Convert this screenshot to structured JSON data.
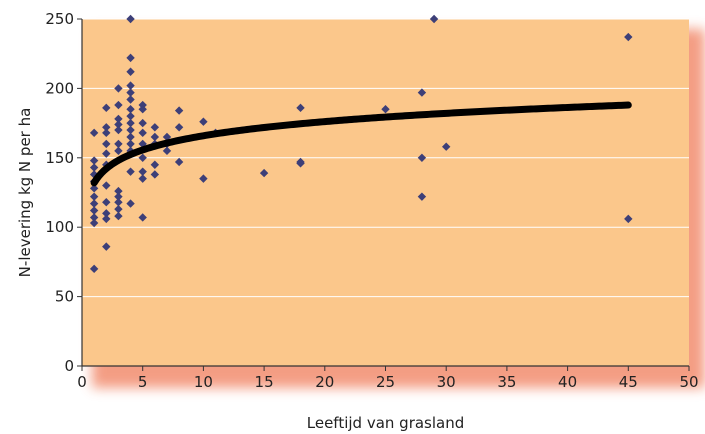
{
  "chart_data": {
    "type": "scatter",
    "title": "",
    "xlabel": "Leeftijd van grasland",
    "ylabel": "N-levering kg N per ha",
    "xlim": [
      0,
      50
    ],
    "ylim": [
      0,
      250
    ],
    "x_ticks": [
      0,
      5,
      10,
      15,
      20,
      25,
      30,
      35,
      40,
      45,
      50
    ],
    "y_ticks": [
      0,
      50,
      100,
      150,
      200,
      250
    ],
    "grid": "horizontal",
    "legend": "none",
    "colors": {
      "plot_background": "#FBC78B",
      "shadow": "#F28C6E",
      "gridline": "#FFFFFF",
      "point": "#3D3F78",
      "trend_line": "#000000"
    },
    "series": [
      {
        "kind": "points",
        "points": [
          [
            1,
            168
          ],
          [
            1,
            148
          ],
          [
            1,
            143
          ],
          [
            1,
            138
          ],
          [
            1,
            133
          ],
          [
            1,
            128
          ],
          [
            1,
            122
          ],
          [
            1,
            117
          ],
          [
            1,
            112
          ],
          [
            1,
            107
          ],
          [
            1,
            103
          ],
          [
            1,
            70
          ],
          [
            2,
            186
          ],
          [
            2,
            172
          ],
          [
            2,
            168
          ],
          [
            2,
            160
          ],
          [
            2,
            153
          ],
          [
            2,
            145
          ],
          [
            2,
            130
          ],
          [
            2,
            118
          ],
          [
            2,
            110
          ],
          [
            2,
            106
          ],
          [
            2,
            86
          ],
          [
            3,
            200
          ],
          [
            3,
            188
          ],
          [
            3,
            178
          ],
          [
            3,
            174
          ],
          [
            3,
            170
          ],
          [
            3,
            160
          ],
          [
            3,
            155
          ],
          [
            3,
            126
          ],
          [
            3,
            122
          ],
          [
            3,
            118
          ],
          [
            3,
            113
          ],
          [
            3,
            108
          ],
          [
            4,
            250
          ],
          [
            4,
            222
          ],
          [
            4,
            212
          ],
          [
            4,
            202
          ],
          [
            4,
            197
          ],
          [
            4,
            192
          ],
          [
            4,
            185
          ],
          [
            4,
            180
          ],
          [
            4,
            175
          ],
          [
            4,
            170
          ],
          [
            4,
            165
          ],
          [
            4,
            160
          ],
          [
            4,
            155
          ],
          [
            4,
            140
          ],
          [
            4,
            117
          ],
          [
            5,
            188
          ],
          [
            5,
            185
          ],
          [
            5,
            175
          ],
          [
            5,
            168
          ],
          [
            5,
            160
          ],
          [
            5,
            150
          ],
          [
            5,
            140
          ],
          [
            5,
            135
          ],
          [
            5,
            107
          ],
          [
            6,
            172
          ],
          [
            6,
            165
          ],
          [
            6,
            160
          ],
          [
            6,
            145
          ],
          [
            6,
            138
          ],
          [
            7,
            165
          ],
          [
            7,
            160
          ],
          [
            7,
            155
          ],
          [
            8,
            184
          ],
          [
            8,
            172
          ],
          [
            8,
            147
          ],
          [
            10,
            176
          ],
          [
            10,
            135
          ],
          [
            11,
            168
          ],
          [
            15,
            139
          ],
          [
            18,
            186
          ],
          [
            18,
            147
          ],
          [
            18,
            146
          ],
          [
            25,
            185
          ],
          [
            28,
            197
          ],
          [
            28,
            150
          ],
          [
            28,
            122
          ],
          [
            29,
            250
          ],
          [
            30,
            158
          ],
          [
            45,
            237
          ],
          [
            45,
            106
          ]
        ]
      },
      {
        "kind": "trend",
        "equation_form": "logarithmic",
        "x_start": 1,
        "x_end": 45,
        "y_at_start": 132,
        "y_at_end": 188
      }
    ]
  }
}
